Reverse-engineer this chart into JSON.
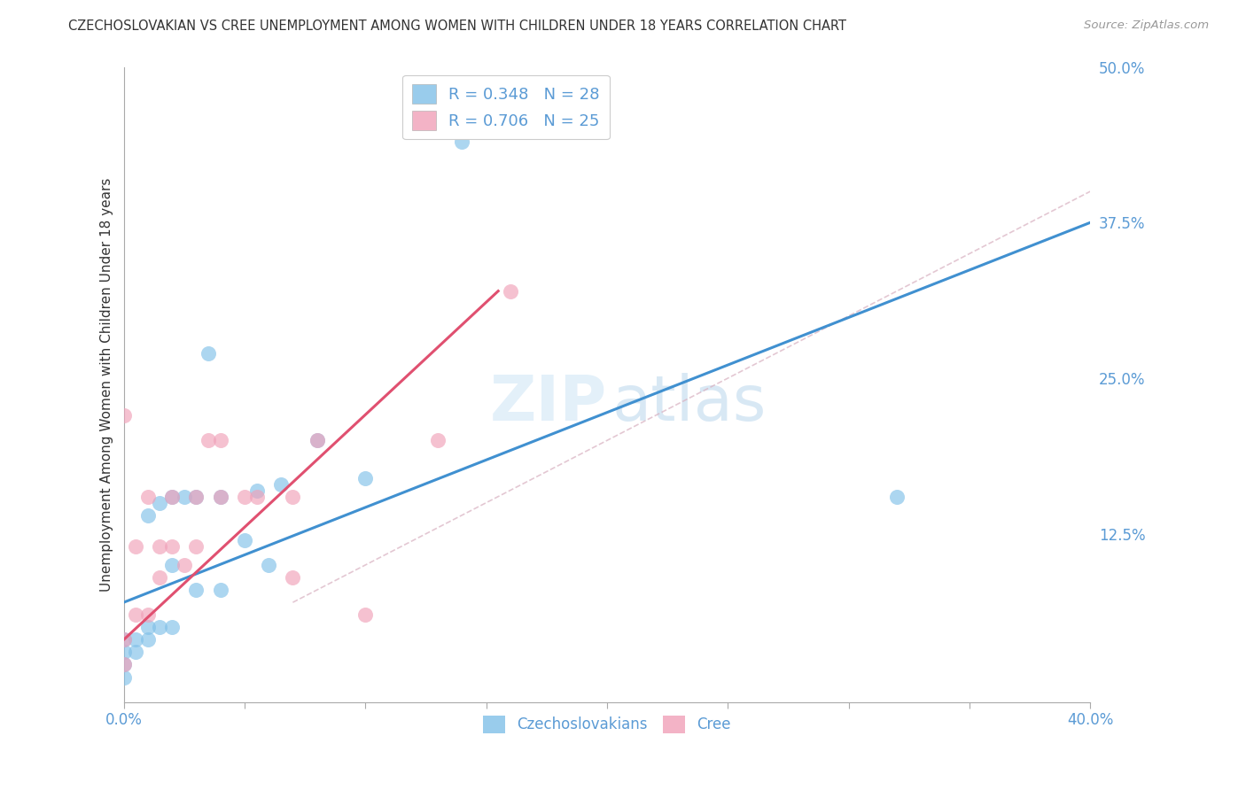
{
  "title": "CZECHOSLOVAKIAN VS CREE UNEMPLOYMENT AMONG WOMEN WITH CHILDREN UNDER 18 YEARS CORRELATION CHART",
  "source": "Source: ZipAtlas.com",
  "ylabel": "Unemployment Among Women with Children Under 18 years",
  "watermark_zip": "ZIP",
  "watermark_atlas": "atlas",
  "xlim": [
    0.0,
    0.4
  ],
  "ylim": [
    -0.01,
    0.5
  ],
  "xticks": [
    0.0,
    0.05,
    0.1,
    0.15,
    0.2,
    0.25,
    0.3,
    0.35,
    0.4
  ],
  "xtick_labels": [
    "0.0%",
    "",
    "",
    "",
    "",
    "",
    "",
    "",
    "40.0%"
  ],
  "yticks_right": [
    0.125,
    0.25,
    0.375,
    0.5
  ],
  "ytick_labels_right": [
    "12.5%",
    "25.0%",
    "37.5%",
    "50.0%"
  ],
  "blue_color": "#80c0e8",
  "pink_color": "#f0a0b8",
  "blue_line_color": "#4090d0",
  "pink_line_color": "#e05070",
  "blue_label": "Czechoslovakians",
  "pink_label": "Cree",
  "blue_R": "R = 0.348",
  "blue_N": "N = 28",
  "pink_R": "R = 0.706",
  "pink_N": "N = 25",
  "title_color": "#333333",
  "tick_color": "#5b9bd5",
  "grid_color": "#cccccc",
  "blue_scatter_x": [
    0.0,
    0.0,
    0.0,
    0.0,
    0.005,
    0.005,
    0.01,
    0.01,
    0.01,
    0.015,
    0.015,
    0.02,
    0.02,
    0.02,
    0.025,
    0.03,
    0.03,
    0.035,
    0.04,
    0.04,
    0.05,
    0.055,
    0.06,
    0.065,
    0.08,
    0.1,
    0.14,
    0.32
  ],
  "blue_scatter_y": [
    0.01,
    0.02,
    0.03,
    0.04,
    0.03,
    0.04,
    0.04,
    0.05,
    0.14,
    0.05,
    0.15,
    0.05,
    0.1,
    0.155,
    0.155,
    0.08,
    0.155,
    0.27,
    0.08,
    0.155,
    0.12,
    0.16,
    0.1,
    0.165,
    0.2,
    0.17,
    0.44,
    0.155
  ],
  "pink_scatter_x": [
    0.0,
    0.0,
    0.0,
    0.005,
    0.005,
    0.01,
    0.01,
    0.015,
    0.015,
    0.02,
    0.02,
    0.025,
    0.03,
    0.03,
    0.035,
    0.04,
    0.04,
    0.05,
    0.055,
    0.07,
    0.07,
    0.08,
    0.1,
    0.13,
    0.16
  ],
  "pink_scatter_y": [
    0.02,
    0.04,
    0.22,
    0.06,
    0.115,
    0.06,
    0.155,
    0.09,
    0.115,
    0.115,
    0.155,
    0.1,
    0.115,
    0.155,
    0.2,
    0.155,
    0.2,
    0.155,
    0.155,
    0.09,
    0.155,
    0.2,
    0.06,
    0.2,
    0.32
  ],
  "blue_trend_x": [
    0.0,
    0.4
  ],
  "blue_trend_y": [
    0.07,
    0.375
  ],
  "pink_trend_x": [
    0.0,
    0.155
  ],
  "pink_trend_y": [
    0.04,
    0.32
  ],
  "diag_line_x": [
    0.07,
    0.4
  ],
  "diag_line_y": [
    0.07,
    0.4
  ],
  "background_color": "#ffffff"
}
